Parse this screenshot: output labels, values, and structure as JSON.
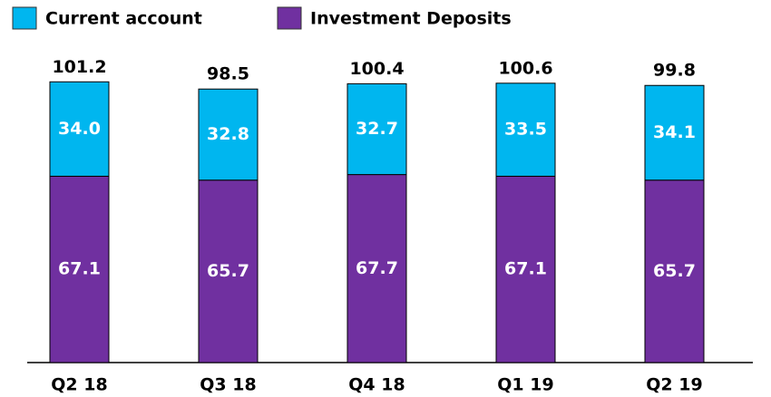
{
  "chart_data": {
    "type": "stacked_bar",
    "categories": [
      "Q2 18",
      "Q3 18",
      "Q4 18",
      "Q1 19",
      "Q2 19"
    ],
    "series": [
      {
        "name": "Current account",
        "color": "#00b6ef",
        "values": [
          34.0,
          32.8,
          32.7,
          33.5,
          34.1
        ],
        "value_labels": [
          "34.0",
          "32.8",
          "32.7",
          "33.5",
          "34.1"
        ]
      },
      {
        "name": "Investment Deposits",
        "color": "#7030a0",
        "values": [
          67.1,
          65.7,
          67.7,
          67.1,
          65.7
        ],
        "value_labels": [
          "67.1",
          "65.7",
          "67.7",
          "67.1",
          "65.7"
        ]
      }
    ],
    "totals": [
      101.2,
      98.5,
      100.4,
      100.6,
      99.8
    ],
    "ylim": [
      0,
      110
    ]
  }
}
